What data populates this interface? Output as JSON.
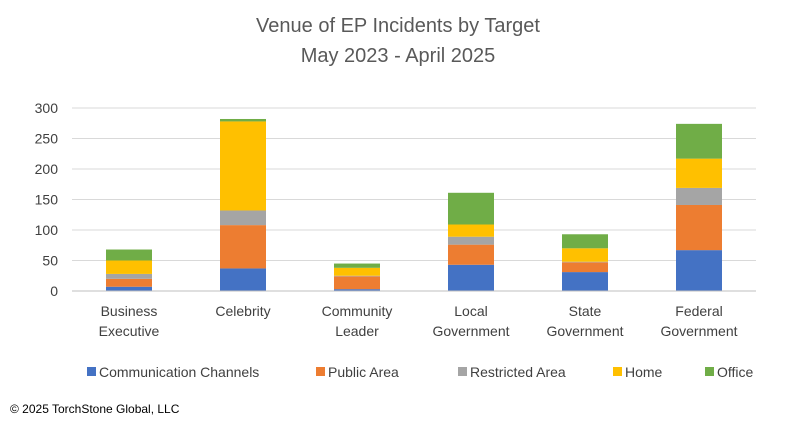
{
  "chart_data": {
    "type": "bar",
    "stacked": true,
    "title": [
      "Venue of EP Incidents by Target",
      "May 2023 - April 2025"
    ],
    "categories": [
      [
        "Business",
        "Executive"
      ],
      [
        "Celebrity"
      ],
      [
        "Community",
        "Leader"
      ],
      [
        "Local",
        "Government"
      ],
      [
        "State",
        "Government"
      ],
      [
        "Federal",
        "Government"
      ]
    ],
    "series": [
      {
        "name": "Communication Channels",
        "color": "#4472C4",
        "values": [
          7,
          37,
          3,
          43,
          31,
          67
        ]
      },
      {
        "name": "Public Area",
        "color": "#ED7D31",
        "values": [
          13,
          71,
          21,
          33,
          16,
          74
        ]
      },
      {
        "name": "Restricted Area",
        "color": "#A5A5A5",
        "values": [
          8,
          24,
          1,
          13,
          1,
          28
        ]
      },
      {
        "name": "Home",
        "color": "#FFC000",
        "values": [
          22,
          146,
          13,
          20,
          22,
          48
        ]
      },
      {
        "name": "Office",
        "color": "#70AD47",
        "values": [
          18,
          4,
          7,
          52,
          23,
          57
        ]
      }
    ],
    "ylim": [
      0,
      300
    ],
    "yticks": [
      0,
      50,
      100,
      150,
      200,
      250,
      300
    ],
    "grid": true,
    "legend_position": "bottom"
  },
  "footer": {
    "copyright": "© 2025 TorchStone Global, LLC"
  }
}
